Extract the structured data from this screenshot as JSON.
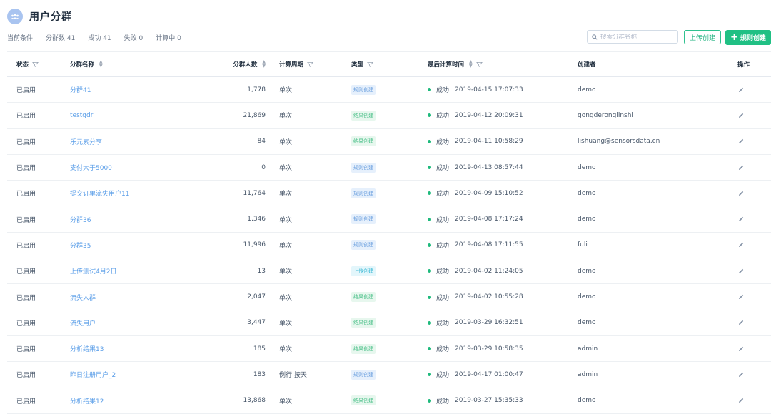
{
  "header": {
    "title": "用户分群"
  },
  "filters": {
    "label": "当前条件",
    "total": "分群数 41",
    "success": "成功 41",
    "failed": "失败 0",
    "computing": "计算中 0"
  },
  "search": {
    "placeholder": "搜索分群名称"
  },
  "actions": {
    "upload_label": "上传创建",
    "create_plus": "+",
    "create_label": "规则创建"
  },
  "table": {
    "columns": {
      "status": "状态",
      "name": "分群名称",
      "count": "分群人数",
      "cycle": "计算周期",
      "type": "类型",
      "time": "最后计算时间",
      "creator": "创建者",
      "op": "操作"
    },
    "rows": [
      {
        "status": "已启用",
        "name": "分群41",
        "count": "1,778",
        "cycle": "单次",
        "type": "规则创建",
        "type_kind": "rule",
        "result": "成功",
        "time": "2019-04-15 17:07:33",
        "creator": "demo"
      },
      {
        "status": "已启用",
        "name": "testgdr",
        "count": "21,869",
        "cycle": "单次",
        "type": "结果创建",
        "type_kind": "result",
        "result": "成功",
        "time": "2019-04-12 20:09:31",
        "creator": "gongderonglinshi"
      },
      {
        "status": "已启用",
        "name": "乐元素分享",
        "count": "84",
        "cycle": "单次",
        "type": "结果创建",
        "type_kind": "result",
        "result": "成功",
        "time": "2019-04-11 10:58:29",
        "creator": "lishuang@sensorsdata.cn"
      },
      {
        "status": "已启用",
        "name": "支付大于5000",
        "count": "0",
        "cycle": "单次",
        "type": "规则创建",
        "type_kind": "rule",
        "result": "成功",
        "time": "2019-04-13 08:57:44",
        "creator": "demo"
      },
      {
        "status": "已启用",
        "name": "提交订单流失用户11",
        "count": "11,764",
        "cycle": "单次",
        "type": "规则创建",
        "type_kind": "rule",
        "result": "成功",
        "time": "2019-04-09 15:10:52",
        "creator": "demo"
      },
      {
        "status": "已启用",
        "name": "分群36",
        "count": "1,346",
        "cycle": "单次",
        "type": "规则创建",
        "type_kind": "rule",
        "result": "成功",
        "time": "2019-04-08 17:17:24",
        "creator": "demo"
      },
      {
        "status": "已启用",
        "name": "分群35",
        "count": "11,996",
        "cycle": "单次",
        "type": "规则创建",
        "type_kind": "rule",
        "result": "成功",
        "time": "2019-04-08 17:11:55",
        "creator": "fuli"
      },
      {
        "status": "已启用",
        "name": "上传测试4月2日",
        "count": "13",
        "cycle": "单次",
        "type": "上传创建",
        "type_kind": "upload",
        "result": "成功",
        "time": "2019-04-02 11:24:05",
        "creator": "demo"
      },
      {
        "status": "已启用",
        "name": "流失人群",
        "count": "2,047",
        "cycle": "单次",
        "type": "结果创建",
        "type_kind": "result",
        "result": "成功",
        "time": "2019-04-02 10:55:28",
        "creator": "demo"
      },
      {
        "status": "已启用",
        "name": "流失用户",
        "count": "3,447",
        "cycle": "单次",
        "type": "结果创建",
        "type_kind": "result",
        "result": "成功",
        "time": "2019-03-29 16:32:51",
        "creator": "demo"
      },
      {
        "status": "已启用",
        "name": "分析结果13",
        "count": "185",
        "cycle": "单次",
        "type": "结果创建",
        "type_kind": "result",
        "result": "成功",
        "time": "2019-03-29 10:58:35",
        "creator": "admin"
      },
      {
        "status": "已启用",
        "name": "昨日注册用户_2",
        "count": "183",
        "cycle": "例行 按天",
        "type": "规则创建",
        "type_kind": "rule",
        "result": "成功",
        "time": "2019-04-17 01:00:47",
        "creator": "admin"
      },
      {
        "status": "已启用",
        "name": "分析结果12",
        "count": "13,868",
        "cycle": "单次",
        "type": "结果创建",
        "type_kind": "result",
        "result": "成功",
        "time": "2019-03-27 15:35:33",
        "creator": "demo"
      }
    ]
  },
  "colors": {
    "accent": "#20c084",
    "link": "#5b9ee8",
    "success_dot": "#1fba7d"
  }
}
